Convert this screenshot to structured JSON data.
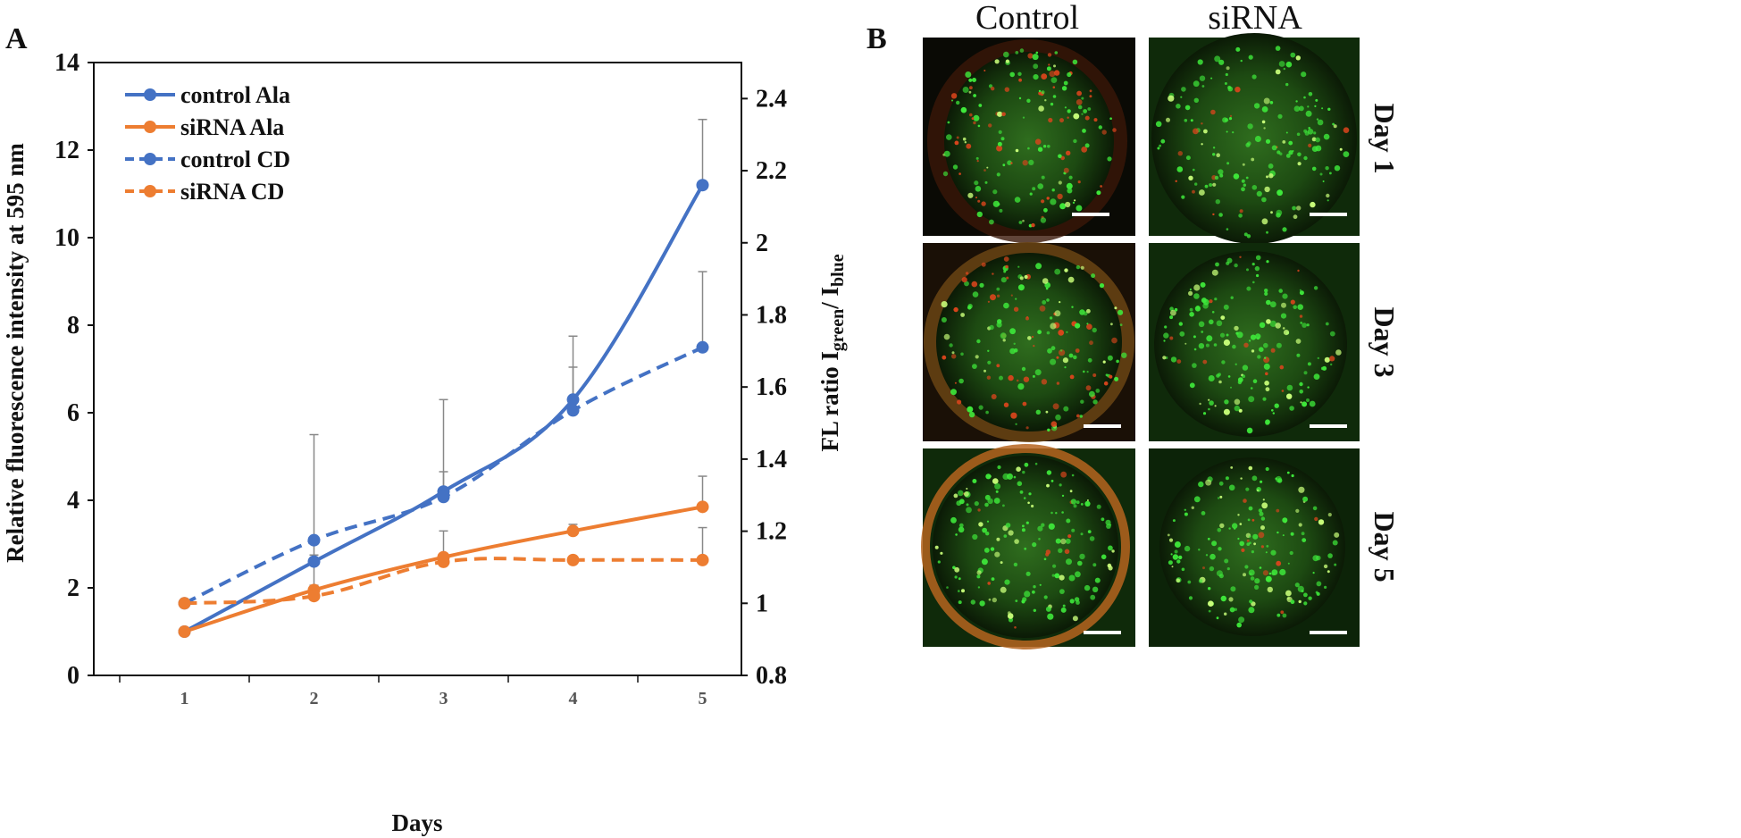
{
  "panels": {
    "a_letter": "A",
    "b_letter": "B"
  },
  "chart_data": {
    "type": "line",
    "x": [
      1,
      2,
      3,
      4,
      5
    ],
    "xlabel": "Days",
    "ylabel_left": "Relative fluorescence intensity at 595 nm",
    "ylabel_right_parts": [
      "FL ratio I",
      "green",
      "/ I",
      "blue"
    ],
    "ylim_left": [
      0,
      14
    ],
    "yticks_left": [
      "0",
      "2",
      "4",
      "6",
      "8",
      "10",
      "12",
      "14"
    ],
    "ylim_right": [
      0.8,
      2.5
    ],
    "yticks_right": [
      "0.8",
      "1",
      "1.2",
      "1.4",
      "1.6",
      "1.8",
      "2",
      "2.2",
      "2.4"
    ],
    "xticks": [
      "1",
      "2",
      "3",
      "4",
      "5"
    ],
    "legend_position": "top-left",
    "grid": false,
    "colors": {
      "blue": "#4472C4",
      "orange": "#ED7D31",
      "errorbar": "#888888"
    },
    "series": [
      {
        "name": "control Ala",
        "axis": "left",
        "style": "solid",
        "color": "#4472C4",
        "values": [
          1.0,
          2.6,
          4.2,
          6.3,
          11.2
        ],
        "errors": [
          0,
          2.9,
          2.1,
          1.45,
          1.5
        ]
      },
      {
        "name": "siRNA Ala",
        "axis": "left",
        "style": "solid",
        "color": "#ED7D31",
        "values": [
          1.0,
          1.95,
          2.7,
          3.3,
          3.85
        ],
        "errors": [
          0,
          0.8,
          0.6,
          0.15,
          0.7
        ]
      },
      {
        "name": "control CD",
        "axis": "right",
        "style": "dashed",
        "color": "#4472C4",
        "values": [
          1.0,
          1.175,
          1.295,
          1.535,
          1.71
        ],
        "errors": [
          0,
          0.0,
          0.07,
          0.12,
          0.21
        ]
      },
      {
        "name": "siRNA CD",
        "axis": "right",
        "style": "dashed",
        "color": "#ED7D31",
        "values": [
          1.0,
          1.02,
          1.115,
          1.12,
          1.12
        ],
        "errors": [
          0,
          0.03,
          0.0,
          0.0,
          0.09
        ]
      }
    ]
  },
  "micrographs": {
    "columns": [
      "Control",
      "siRNA"
    ],
    "rows": [
      "Day 1",
      "Day 3",
      "Day 5"
    ]
  }
}
